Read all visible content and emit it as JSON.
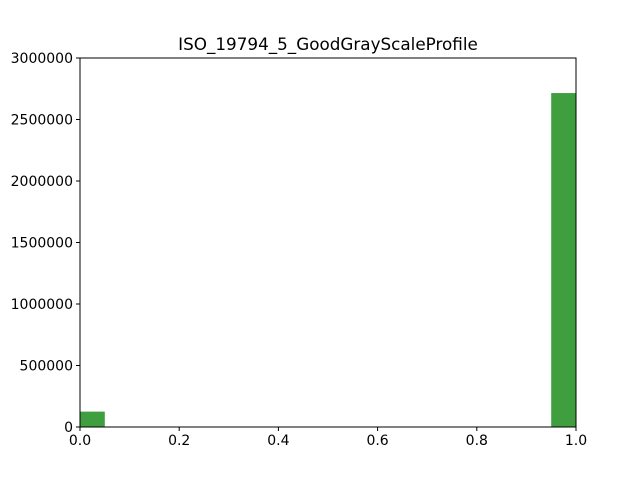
{
  "chart_data": {
    "type": "bar",
    "title": "ISO_19794_5_GoodGrayScaleProfile",
    "xlabel": "",
    "ylabel": "",
    "xlim": [
      0.0,
      1.0
    ],
    "ylim": [
      0,
      3000000
    ],
    "bin_edges": [
      0.0,
      0.05,
      0.1,
      0.15,
      0.2,
      0.25,
      0.3,
      0.35,
      0.4,
      0.45,
      0.5,
      0.55,
      0.6,
      0.65,
      0.7,
      0.75,
      0.8,
      0.85,
      0.9,
      0.95,
      1.0
    ],
    "values": [
      125000,
      0,
      0,
      0,
      0,
      0,
      0,
      0,
      0,
      0,
      0,
      0,
      0,
      0,
      0,
      0,
      0,
      0,
      0,
      2715000
    ],
    "x_ticks": [
      "0.0",
      "0.2",
      "0.4",
      "0.6",
      "0.8",
      "1.0"
    ],
    "x_tick_values": [
      0.0,
      0.2,
      0.4,
      0.6,
      0.8,
      1.0
    ],
    "y_ticks": [
      "0",
      "500000",
      "1000000",
      "1500000",
      "2000000",
      "2500000",
      "3000000"
    ],
    "y_tick_values": [
      0,
      500000,
      1000000,
      1500000,
      2000000,
      2500000,
      3000000
    ],
    "bar_color": "#3f9f3f",
    "grid": false,
    "legend": "none"
  }
}
